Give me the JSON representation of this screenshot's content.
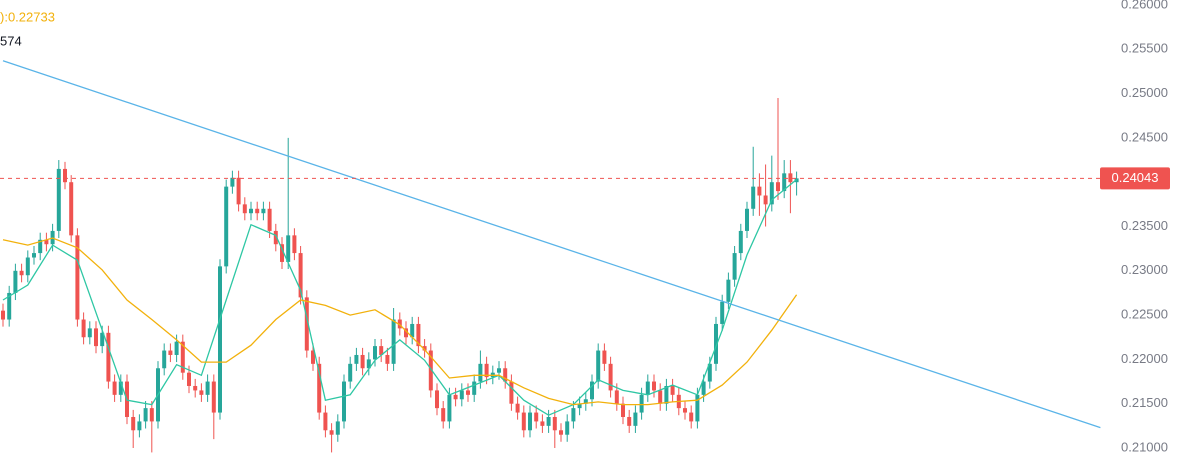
{
  "chart_data": {
    "type": "candlestick",
    "annotations": [
      {
        "text": "):0.22733",
        "color": "#f2b10c"
      },
      {
        "text": "574",
        "color": "#131722"
      }
    ],
    "up_color": "#26a69a",
    "down_color": "#ef5350",
    "open": [
      0.2255,
      0.2245,
      0.2275,
      0.23,
      0.2295,
      0.2315,
      0.232,
      0.2335,
      0.233,
      0.2345,
      0.2415,
      0.24,
      0.234,
      0.2245,
      0.2225,
      0.2235,
      0.2215,
      0.223,
      0.2175,
      0.216,
      0.2175,
      0.2135,
      0.212,
      0.213,
      0.2145,
      0.213,
      0.219,
      0.221,
      0.2205,
      0.222,
      0.2185,
      0.217,
      0.2165,
      0.216,
      0.2175,
      0.214,
      0.2305,
      0.2395,
      0.2405,
      0.2375,
      0.2365,
      0.237,
      0.2365,
      0.237,
      0.2345,
      0.233,
      0.231,
      0.234,
      0.232,
      0.227,
      0.221,
      0.2195,
      0.214,
      0.212,
      0.2115,
      0.213,
      0.2175,
      0.2195,
      0.2205,
      0.219,
      0.22,
      0.2215,
      0.2205,
      0.2195,
      0.2245,
      0.2235,
      0.2225,
      0.224,
      0.2215,
      0.221,
      0.2165,
      0.2145,
      0.213,
      0.216,
      0.2155,
      0.2165,
      0.216,
      0.2175,
      0.2195,
      0.218,
      0.2185,
      0.219,
      0.2175,
      0.215,
      0.214,
      0.212,
      0.214,
      0.213,
      0.2125,
      0.2135,
      0.212,
      0.2115,
      0.213,
      0.2145,
      0.215,
      0.2155,
      0.2175,
      0.221,
      0.2195,
      0.2165,
      0.215,
      0.2135,
      0.2125,
      0.214,
      0.216,
      0.2175,
      0.2165,
      0.215,
      0.217,
      0.216,
      0.2145,
      0.214,
      0.213,
      0.216,
      0.2175,
      0.2195,
      0.224,
      0.2265,
      0.229,
      0.232,
      0.2345,
      0.237,
      0.2395,
      0.2385,
      0.2375,
      0.24,
      0.239,
      0.241,
      0.24
    ],
    "high": [
      0.2263,
      0.2283,
      0.2308,
      0.2308,
      0.2323,
      0.2328,
      0.2343,
      0.2343,
      0.2353,
      0.2425,
      0.2423,
      0.2408,
      0.2348,
      0.2253,
      0.2243,
      0.2243,
      0.2238,
      0.2238,
      0.2183,
      0.2183,
      0.2183,
      0.2143,
      0.2138,
      0.2153,
      0.2153,
      0.2198,
      0.2218,
      0.2218,
      0.2228,
      0.2228,
      0.2193,
      0.2178,
      0.2173,
      0.2183,
      0.2183,
      0.2313,
      0.2403,
      0.2413,
      0.2413,
      0.2383,
      0.2378,
      0.2378,
      0.2378,
      0.2378,
      0.2353,
      0.2338,
      0.245,
      0.2348,
      0.2328,
      0.2278,
      0.2218,
      0.2203,
      0.2148,
      0.2128,
      0.2138,
      0.2183,
      0.2203,
      0.2213,
      0.2213,
      0.2208,
      0.2223,
      0.2223,
      0.2213,
      0.2258,
      0.2253,
      0.2243,
      0.2248,
      0.2248,
      0.2223,
      0.2218,
      0.2173,
      0.2153,
      0.2168,
      0.2168,
      0.2173,
      0.2173,
      0.2183,
      0.221,
      0.2203,
      0.2193,
      0.2198,
      0.2198,
      0.2183,
      0.2158,
      0.2148,
      0.2148,
      0.2148,
      0.2138,
      0.2143,
      0.2143,
      0.2128,
      0.2138,
      0.2153,
      0.2158,
      0.2163,
      0.2183,
      0.2218,
      0.2218,
      0.2203,
      0.2173,
      0.2158,
      0.2143,
      0.2148,
      0.2168,
      0.2183,
      0.2183,
      0.2173,
      0.2178,
      0.2178,
      0.2168,
      0.2153,
      0.2148,
      0.2168,
      0.2183,
      0.2203,
      0.2248,
      0.2273,
      0.2298,
      0.2328,
      0.2353,
      0.2378,
      0.244,
      0.241,
      0.242,
      0.243,
      0.2495,
      0.2425,
      0.2425,
      0.2412
    ],
    "low": [
      0.2237,
      0.2237,
      0.2267,
      0.2287,
      0.2287,
      0.2307,
      0.2312,
      0.2322,
      0.2322,
      0.2337,
      0.2392,
      0.2332,
      0.2237,
      0.2217,
      0.2217,
      0.2207,
      0.2207,
      0.2167,
      0.2152,
      0.2152,
      0.2127,
      0.21,
      0.2112,
      0.2122,
      0.2095,
      0.2122,
      0.2182,
      0.2197,
      0.2197,
      0.2177,
      0.2162,
      0.2157,
      0.2152,
      0.2152,
      0.211,
      0.2132,
      0.2297,
      0.2387,
      0.2367,
      0.2357,
      0.2357,
      0.2357,
      0.2357,
      0.2337,
      0.2322,
      0.2302,
      0.2302,
      0.2312,
      0.2262,
      0.2202,
      0.2187,
      0.2132,
      0.2112,
      0.2095,
      0.2107,
      0.2122,
      0.2167,
      0.2187,
      0.2182,
      0.2182,
      0.2192,
      0.2197,
      0.2187,
      0.2187,
      0.2227,
      0.2217,
      0.2217,
      0.2207,
      0.2202,
      0.2157,
      0.2137,
      0.2122,
      0.2122,
      0.2147,
      0.2147,
      0.2152,
      0.2152,
      0.2167,
      0.2172,
      0.2172,
      0.2177,
      0.2167,
      0.2142,
      0.2132,
      0.2112,
      0.2112,
      0.2122,
      0.2117,
      0.2117,
      0.21,
      0.2107,
      0.2107,
      0.2122,
      0.2137,
      0.2142,
      0.2147,
      0.2167,
      0.2187,
      0.2157,
      0.2142,
      0.2127,
      0.2117,
      0.2117,
      0.2132,
      0.2152,
      0.2157,
      0.2142,
      0.2142,
      0.2152,
      0.2137,
      0.2132,
      0.2122,
      0.2122,
      0.2152,
      0.2167,
      0.2187,
      0.2232,
      0.2257,
      0.2282,
      0.2312,
      0.2337,
      0.2362,
      0.2362,
      0.235,
      0.2367,
      0.238,
      0.2382,
      0.2365,
      0.2385
    ],
    "close": [
      0.2245,
      0.2275,
      0.23,
      0.2295,
      0.2315,
      0.232,
      0.2335,
      0.233,
      0.2345,
      0.2415,
      0.24,
      0.234,
      0.2245,
      0.2225,
      0.2235,
      0.2215,
      0.223,
      0.2175,
      0.216,
      0.2175,
      0.2135,
      0.212,
      0.213,
      0.2145,
      0.213,
      0.219,
      0.221,
      0.2205,
      0.222,
      0.2185,
      0.217,
      0.2165,
      0.216,
      0.2175,
      0.214,
      0.2305,
      0.2395,
      0.2405,
      0.2375,
      0.2365,
      0.237,
      0.2365,
      0.237,
      0.2345,
      0.233,
      0.231,
      0.234,
      0.232,
      0.227,
      0.221,
      0.2195,
      0.214,
      0.212,
      0.2115,
      0.213,
      0.2175,
      0.2195,
      0.2205,
      0.219,
      0.22,
      0.2215,
      0.2205,
      0.2195,
      0.2245,
      0.2235,
      0.2225,
      0.224,
      0.2215,
      0.221,
      0.2165,
      0.2145,
      0.213,
      0.216,
      0.2155,
      0.2165,
      0.216,
      0.2175,
      0.2195,
      0.218,
      0.2185,
      0.219,
      0.2175,
      0.215,
      0.214,
      0.212,
      0.214,
      0.213,
      0.2125,
      0.2135,
      0.212,
      0.2115,
      0.213,
      0.2145,
      0.215,
      0.2155,
      0.2175,
      0.221,
      0.2195,
      0.2165,
      0.215,
      0.2135,
      0.2125,
      0.214,
      0.216,
      0.2175,
      0.2165,
      0.215,
      0.217,
      0.216,
      0.2145,
      0.214,
      0.213,
      0.216,
      0.2175,
      0.2195,
      0.224,
      0.2265,
      0.229,
      0.232,
      0.2345,
      0.237,
      0.2395,
      0.2385,
      0.2375,
      0.24,
      0.239,
      0.241,
      0.24,
      0.24043
    ],
    "lines": [
      {
        "color": "#2ec7a4",
        "x": [
          0,
          4,
          8,
          12,
          16,
          20,
          24,
          28,
          32,
          36,
          40,
          44,
          48,
          52,
          56,
          60,
          64,
          68,
          72,
          76,
          80,
          84,
          88,
          92,
          96,
          100,
          104,
          108,
          112,
          116,
          120,
          124,
          128
        ],
        "values": [
          0.2267,
          0.2284,
          0.2329,
          0.2312,
          0.2233,
          0.2154,
          0.2149,
          0.2194,
          0.2182,
          0.2267,
          0.2352,
          0.234,
          0.2278,
          0.2154,
          0.216,
          0.2199,
          0.2222,
          0.2199,
          0.216,
          0.2171,
          0.2182,
          0.2154,
          0.2137,
          0.2149,
          0.2177,
          0.2165,
          0.216,
          0.2171,
          0.216,
          0.2233,
          0.2318,
          0.238,
          0.2403
        ]
      },
      {
        "color": "#f2b10c",
        "x": [
          0,
          4,
          8,
          12,
          16,
          20,
          24,
          28,
          32,
          36,
          40,
          44,
          48,
          52,
          56,
          60,
          64,
          68,
          72,
          76,
          80,
          84,
          88,
          92,
          96,
          100,
          104,
          108,
          112,
          116,
          120,
          124,
          128
        ],
        "values": [
          0.2335,
          0.2329,
          0.2337,
          0.2326,
          0.2301,
          0.2267,
          0.2245,
          0.2222,
          0.2197,
          0.2197,
          0.2216,
          0.2245,
          0.2267,
          0.2261,
          0.225,
          0.2256,
          0.2239,
          0.2211,
          0.2179,
          0.2182,
          0.2182,
          0.2168,
          0.2156,
          0.2149,
          0.2152,
          0.2149,
          0.2149,
          0.2152,
          0.2154,
          0.2171,
          0.2197,
          0.2233,
          0.2273
        ]
      },
      {
        "color": "#5ab4e8",
        "x": [
          0,
          177
        ],
        "values": [
          0.2537,
          0.2123
        ]
      }
    ],
    "price_line": {
      "value": 0.24043,
      "label": "0.24043",
      "color": "#ef5350"
    },
    "ylim": [
      0.21,
      0.26
    ],
    "yticks": [
      {
        "value": 0.21,
        "label": "0.21000"
      },
      {
        "value": 0.215,
        "label": "0.21500"
      },
      {
        "value": 0.22,
        "label": "0.22000"
      },
      {
        "value": 0.225,
        "label": "0.22500"
      },
      {
        "value": 0.23,
        "label": "0.23000"
      },
      {
        "value": 0.235,
        "label": "0.23500"
      },
      {
        "value": 0.24,
        "label": "0.24000"
      },
      {
        "value": 0.245,
        "label": "0.24500"
      },
      {
        "value": 0.25,
        "label": "0.25000"
      },
      {
        "value": 0.255,
        "label": "0.25500"
      },
      {
        "value": 0.26,
        "label": "0.26000"
      }
    ]
  }
}
